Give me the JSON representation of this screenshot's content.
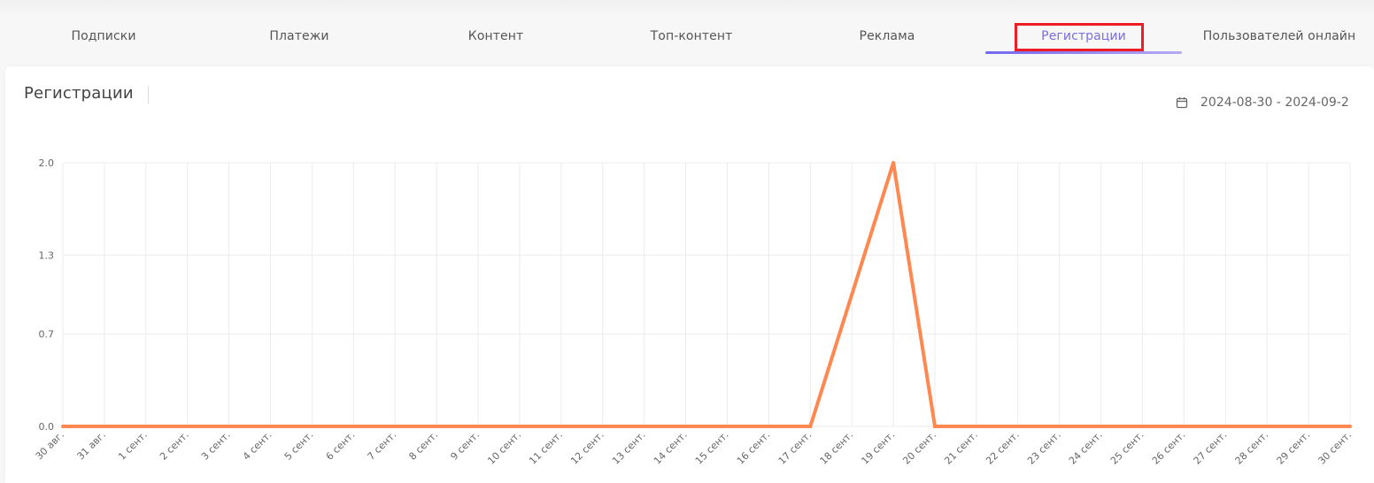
{
  "tabs": [
    {
      "label": "Подписки",
      "active": false
    },
    {
      "label": "Платежи",
      "active": false
    },
    {
      "label": "Контент",
      "active": false
    },
    {
      "label": "Топ-контент",
      "active": false
    },
    {
      "label": "Реклама",
      "active": false
    },
    {
      "label": "Регистрации",
      "active": true
    },
    {
      "label": "Пользователей онлайн",
      "active": false
    }
  ],
  "card": {
    "title": "Регистрации",
    "date_range": "2024-08-30 - 2024-09-2",
    "date_icon": "calendar-icon"
  },
  "colors": {
    "accent": "#7367f0",
    "highlight": "#ee1c25",
    "line": "#ff8750",
    "grid": "#ececec"
  },
  "chart_data": {
    "type": "line",
    "title": "",
    "xlabel": "",
    "ylabel": "",
    "ylim": [
      0,
      2
    ],
    "yticks": [
      "0.0",
      "0.7",
      "1.3",
      "2.0"
    ],
    "grid": true,
    "categories": [
      "30 авг.",
      "31 авг.",
      "1 сент.",
      "2 сент.",
      "3 сент.",
      "4 сент.",
      "5 сент.",
      "6 сент.",
      "7 сент.",
      "8 сент.",
      "9 сент.",
      "10 сент.",
      "11 сент.",
      "12 сент.",
      "13 сент.",
      "14 сент.",
      "15 сент.",
      "16 сент.",
      "17 сент.",
      "18 сент.",
      "19 сент.",
      "20 сент.",
      "21 сент.",
      "22 сент.",
      "23 сент.",
      "24 сент.",
      "25 сент.",
      "26 сент.",
      "27 сент.",
      "28 сент.",
      "29 сент.",
      "30 сент."
    ],
    "series": [
      {
        "values": [
          0,
          0,
          0,
          0,
          0,
          0,
          0,
          0,
          0,
          0,
          0,
          0,
          0,
          0,
          0,
          0,
          0,
          0,
          0,
          1,
          2,
          0,
          0,
          0,
          0,
          0,
          0,
          0,
          0,
          0,
          0,
          0
        ]
      }
    ]
  }
}
